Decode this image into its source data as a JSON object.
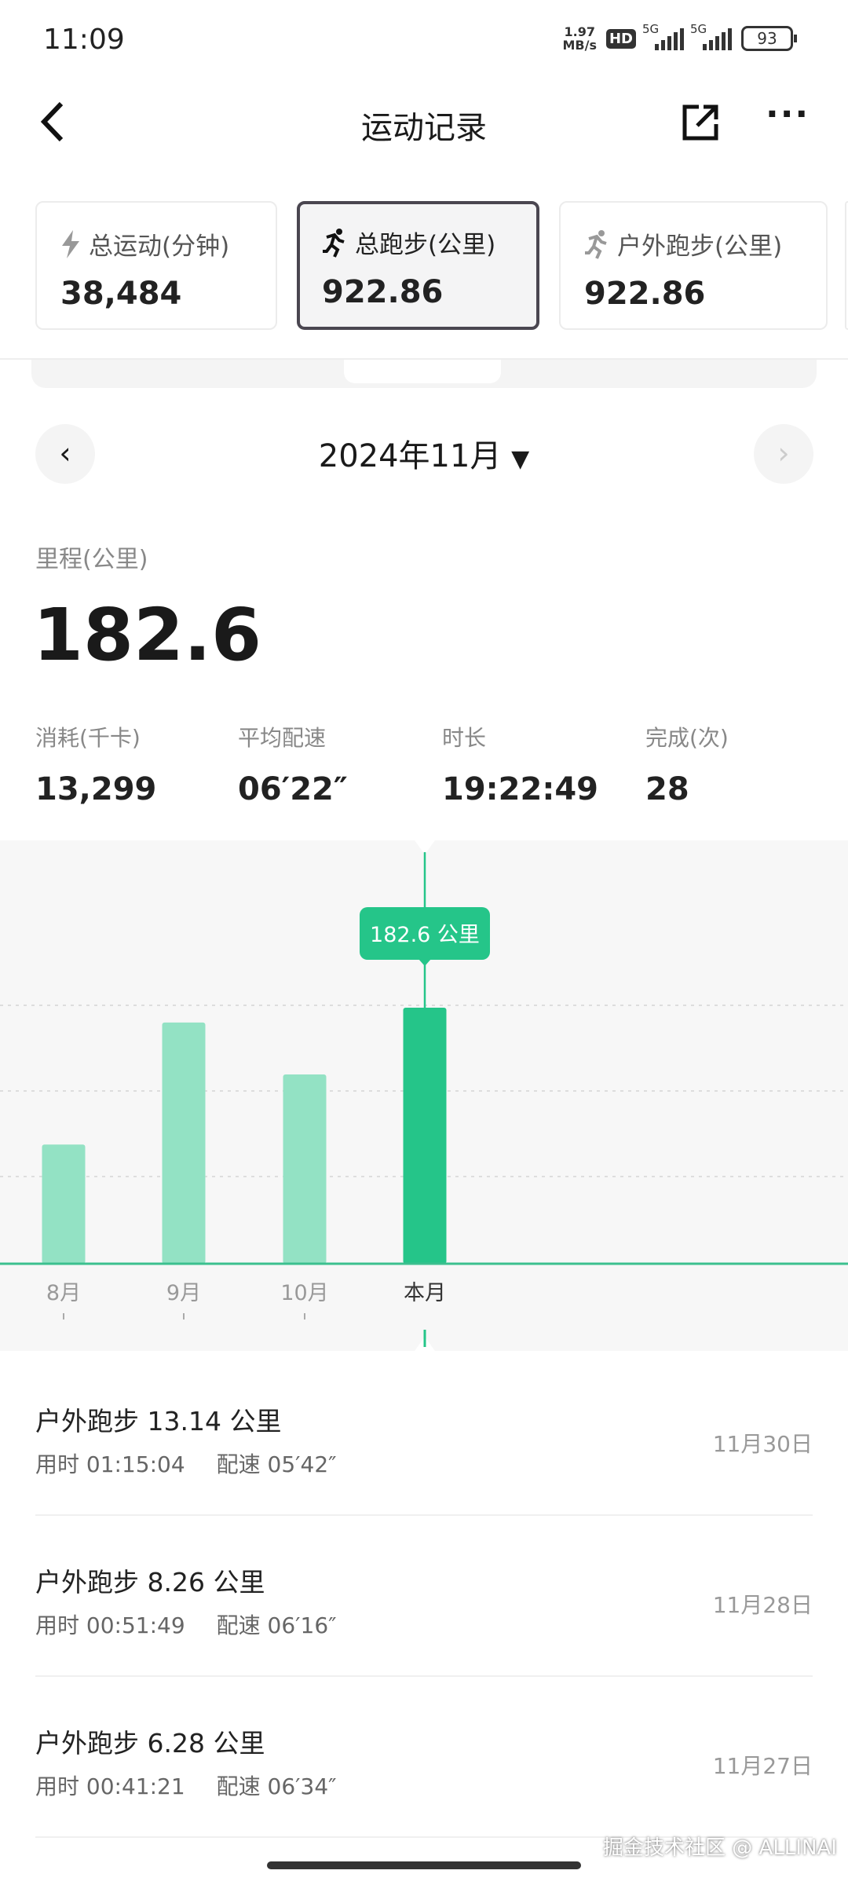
{
  "status_bar": {
    "time": "11:09",
    "speed": "1.97",
    "speed_unit": "MB/s",
    "hd": "HD",
    "net1": "5G",
    "net2": "5G",
    "battery": "93"
  },
  "header": {
    "title": "运动记录",
    "back_icon": "chevron-left-icon",
    "share_icon": "share-icon",
    "more_icon": "more-icon"
  },
  "summary_cards": [
    {
      "label": "总运动(分钟)",
      "value": "38,484",
      "icon": "lightning-icon",
      "selected": false
    },
    {
      "label": "总跑步(公里)",
      "value": "922.86",
      "icon": "runner-icon",
      "selected": true
    },
    {
      "label": "户外跑步(公里)",
      "value": "922.86",
      "icon": "runner-icon",
      "selected": false
    }
  ],
  "period": {
    "title": "2024年11月",
    "dropdown_icon": "caret-down-icon"
  },
  "distance": {
    "label": "里程(公里)",
    "value": "182.6"
  },
  "stats": [
    {
      "label": "消耗(千卡)",
      "value": "13,299"
    },
    {
      "label": "平均配速",
      "value": "06′22″"
    },
    {
      "label": "时长",
      "value": "19:22:49"
    },
    {
      "label": "完成(次)",
      "value": "28"
    }
  ],
  "chart_data": {
    "type": "bar",
    "categories": [
      "8月",
      "9月",
      "10月",
      "本月"
    ],
    "values": [
      85,
      172,
      135,
      182.6
    ],
    "highlight_index": 3,
    "tooltip": "182.6 公里",
    "grid": true,
    "colors": {
      "bar": "#93e2c4",
      "highlight": "#25c589",
      "axis": "#3cc08f"
    }
  },
  "records": [
    {
      "title": "户外跑步 13.14 公里",
      "duration": "用时 01:15:04",
      "pace": "配速 05′42″",
      "date": "11月30日"
    },
    {
      "title": "户外跑步 8.26 公里",
      "duration": "用时 00:51:49",
      "pace": "配速 06′16″",
      "date": "11月28日"
    },
    {
      "title": "户外跑步 6.28 公里",
      "duration": "用时 00:41:21",
      "pace": "配速 06′34″",
      "date": "11月27日"
    }
  ],
  "watermark": "掘金技术社区 @ ALLINAI"
}
